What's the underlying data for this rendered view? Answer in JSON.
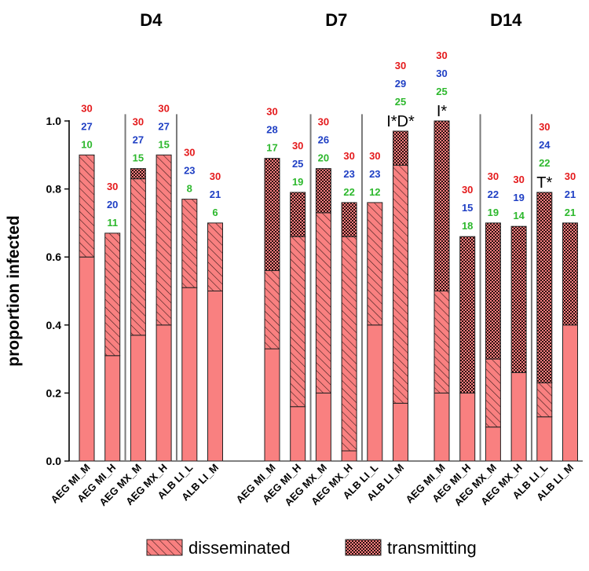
{
  "chart_data": {
    "type": "bar",
    "stacked": true,
    "ylabel": "proportion infected",
    "ylim": [
      0,
      1.0
    ],
    "yticks": [
      "0.0",
      "0.2",
      "0.4",
      "0.6",
      "0.8",
      "1.0"
    ],
    "grid": false,
    "legend_position": "bottom",
    "colors": {
      "fill": "#f98080",
      "edge": "#222222",
      "count_red": "#e41a1c",
      "count_blue": "#1f3fc4",
      "count_green": "#2db82d"
    },
    "legend": [
      {
        "name": "disseminated",
        "pattern": "hatch"
      },
      {
        "name": "transmitting",
        "pattern": "checker"
      }
    ],
    "segments_note": "infected: plain bottom segment; disseminated: hatched middle segment; transmitting: checkered top segment; values are cumulative tops",
    "panels": [
      {
        "title": "D4",
        "categories": [
          "AEG MI_M",
          "AEG MI_H",
          "AEG MX_M",
          "AEG MX_H",
          "ALB LI_L",
          "ALB LI_M"
        ],
        "infected_only": [
          0.6,
          0.31,
          0.37,
          0.4,
          0.51,
          0.5
        ],
        "disseminated_top": [
          0.9,
          0.67,
          0.83,
          0.9,
          0.77,
          0.7
        ],
        "transmitting_top": [
          0.9,
          0.67,
          0.86,
          0.9,
          0.77,
          0.7
        ],
        "counts": [
          [
            "30",
            "27",
            "10"
          ],
          [
            "30",
            "20",
            "11"
          ],
          [
            "30",
            "27",
            "15"
          ],
          [
            "30",
            "27",
            "15"
          ],
          [
            "30",
            "23",
            "8"
          ],
          [
            "30",
            "21",
            "6"
          ]
        ],
        "annotations": [
          "",
          "",
          "",
          "",
          "",
          ""
        ]
      },
      {
        "title": "D7",
        "categories": [
          "AEG MI_M",
          "AEG MI_H",
          "AEG MX_M",
          "AEG MX_H",
          "ALB LI_L",
          "ALB LI_M"
        ],
        "infected_only": [
          0.33,
          0.16,
          0.2,
          0.03,
          0.4,
          0.17
        ],
        "disseminated_top": [
          0.56,
          0.66,
          0.73,
          0.66,
          0.76,
          0.87
        ],
        "transmitting_top": [
          0.89,
          0.79,
          0.86,
          0.76,
          0.76,
          0.97
        ],
        "counts": [
          [
            "30",
            "28",
            "17"
          ],
          [
            "30",
            "25",
            "19"
          ],
          [
            "30",
            "26",
            "20"
          ],
          [
            "30",
            "23",
            "22"
          ],
          [
            "30",
            "23",
            "12"
          ],
          [
            "30",
            "29",
            "25"
          ]
        ],
        "annotations": [
          "",
          "",
          "",
          "",
          "",
          "I*D*"
        ]
      },
      {
        "title": "D14",
        "categories": [
          "AEG MI_M",
          "AEG MI_H",
          "AEG MX_M",
          "AEG MX_H",
          "ALB LI_L",
          "ALB LI_M"
        ],
        "infected_only": [
          0.2,
          0.2,
          0.1,
          0.26,
          0.13,
          0.4
        ],
        "disseminated_top": [
          0.5,
          0.2,
          0.3,
          0.26,
          0.23,
          0.4
        ],
        "transmitting_top": [
          1.0,
          0.66,
          0.7,
          0.69,
          0.79,
          0.7
        ],
        "counts": [
          [
            "30",
            "30",
            "25"
          ],
          [
            "30",
            "15",
            "18"
          ],
          [
            "30",
            "22",
            "19"
          ],
          [
            "30",
            "19",
            "14"
          ],
          [
            "30",
            "24",
            "22"
          ],
          [
            "30",
            "21",
            "21"
          ]
        ],
        "annotations": [
          "I*",
          "",
          "",
          "",
          "T*",
          ""
        ]
      }
    ]
  }
}
